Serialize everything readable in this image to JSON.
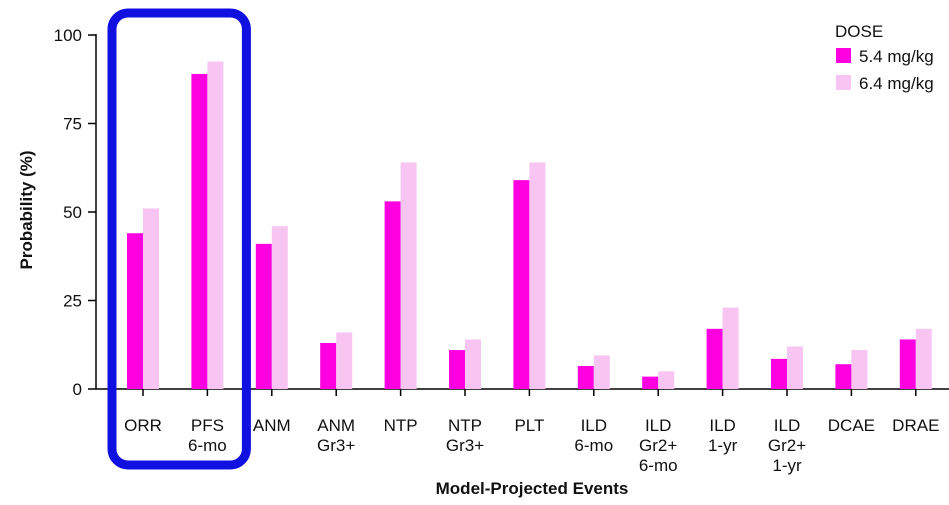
{
  "chart_data": {
    "type": "bar",
    "xlabel": "Model-Projected Events",
    "ylabel": "Probability (%)",
    "ylim": [
      0,
      100
    ],
    "yticks": [
      0,
      25,
      50,
      75,
      100
    ],
    "grid": false,
    "legend": {
      "title": "DOSE",
      "position": "top-right"
    },
    "categories": [
      [
        "ORR"
      ],
      [
        "PFS",
        "6-mo"
      ],
      [
        "ANM"
      ],
      [
        "ANM",
        "Gr3+"
      ],
      [
        "NTP"
      ],
      [
        "NTP",
        "Gr3+"
      ],
      [
        "PLT"
      ],
      [
        "ILD",
        "6-mo"
      ],
      [
        "ILD",
        "Gr2+",
        "6-mo"
      ],
      [
        "ILD",
        "1-yr"
      ],
      [
        "ILD",
        "Gr2+",
        "1-yr"
      ],
      [
        "DCAE"
      ],
      [
        "DRAE"
      ]
    ],
    "series": [
      {
        "name": "5.4 mg/kg",
        "color": "#ff00e0",
        "values": [
          44,
          89,
          41,
          13,
          53,
          11,
          59,
          6.5,
          3.5,
          17,
          8.5,
          7,
          14
        ]
      },
      {
        "name": "6.4 mg/kg",
        "color": "#f8c4f2",
        "values": [
          51,
          92.5,
          46,
          16,
          64,
          14,
          64,
          9.5,
          5,
          23,
          12,
          11,
          17
        ]
      }
    ],
    "highlight": {
      "color": "#1010e0",
      "categories": [
        0,
        1
      ]
    }
  }
}
